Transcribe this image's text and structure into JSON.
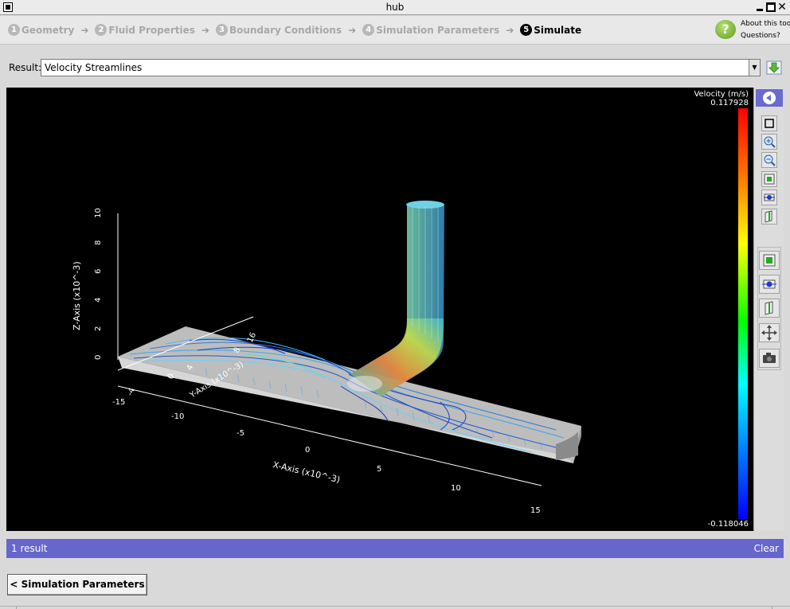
{
  "window": {
    "title": "hub"
  },
  "wizard": {
    "steps": [
      {
        "num": "1",
        "label": "Geometry"
      },
      {
        "num": "2",
        "label": "Fluid Properties"
      },
      {
        "num": "3",
        "label": "Boundary Conditions"
      },
      {
        "num": "4",
        "label": "Simulation Parameters"
      },
      {
        "num": "5",
        "label": "Simulate"
      }
    ],
    "active_step": 5,
    "help": {
      "about": "About this tool",
      "questions": "Questions?"
    }
  },
  "result": {
    "label": "Result:",
    "selected": "Velocity Streamlines"
  },
  "viewer": {
    "legend": {
      "title": "Velocity (m/s)",
      "max": "0.117928",
      "min": "-0.118046"
    },
    "axes": {
      "x_label": "X-Axis (x10^-3)",
      "y_label": "Y-Axis (x10^-3)",
      "z_label": "Z-Axis (x10^-3)",
      "x_ticks": [
        "-15",
        "-10",
        "-5",
        "0",
        "5",
        "10",
        "15"
      ],
      "y_ticks": [
        "-4",
        "0",
        "4",
        "8",
        "16"
      ],
      "z_ticks": [
        "0",
        "2",
        "4",
        "6",
        "8",
        "10"
      ]
    },
    "tools": [
      "reset-view-icon",
      "zoom-in-icon",
      "zoom-out-icon",
      "cube-view-icon",
      "slice-view-icon",
      "plane-view-icon",
      "cube-view-icon",
      "slice-view-icon",
      "plane-view-icon",
      "move-icon",
      "camera-icon"
    ]
  },
  "status": {
    "count": "1 result",
    "clear": "Clear"
  },
  "nav": {
    "back_label": "< Simulation Parameters"
  }
}
